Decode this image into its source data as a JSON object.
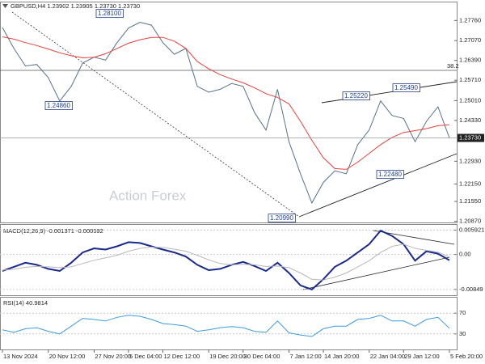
{
  "chart_data": [
    {
      "type": "line",
      "title": "GBPUSD,H4  1.23902 1.23905 1.23730 1.23730",
      "watermark": "Action Forex",
      "categories": [
        "13 Nov 2024",
        null,
        null,
        null,
        "20 Nov 12:00",
        null,
        null,
        null,
        "27 Nov 20:00",
        null,
        null,
        "5 Dec 04:00",
        null,
        null,
        "12 Dec 12:00",
        null,
        null,
        null,
        "19 Dec 20:00",
        null,
        null,
        "30 Dec 04:00",
        null,
        null,
        null,
        "7 Jan 12:00",
        null,
        null,
        "14 Jan 20:00",
        null,
        null,
        null,
        "22 Jan 04:00",
        null,
        null,
        "29 Jan 12:00",
        null,
        null,
        null,
        "5 Feb 20:00"
      ],
      "series": [
        {
          "color": "#56728c",
          "values": [
            1.2752,
            1.268,
            1.262,
            1.2625,
            1.258,
            1.25,
            1.255,
            1.263,
            1.265,
            1.264,
            1.27,
            1.275,
            1.277,
            1.276,
            1.27,
            1.266,
            1.268,
            1.255,
            1.253,
            1.254,
            1.256,
            1.255,
            1.246,
            1.24,
            1.254,
            1.236,
            1.225,
            1.215,
            1.222,
            1.226,
            1.225,
            1.235,
            1.24,
            1.25,
            1.245,
            1.244,
            1.236,
            1.243,
            1.248,
            1.2373
          ]
        },
        {
          "color": "#e8413a",
          "values": [
            1.272,
            1.2712,
            1.27,
            1.269,
            1.2678,
            1.2665,
            1.2655,
            1.2648,
            1.265,
            1.2662,
            1.268,
            1.2698,
            1.271,
            1.2718,
            1.2718,
            1.2705,
            1.268,
            1.2635,
            1.261,
            1.259,
            1.2575,
            1.2562,
            1.2545,
            1.2525,
            1.2512,
            1.249,
            1.243,
            1.2365,
            1.2305,
            1.2268,
            1.2265,
            1.229,
            1.232,
            1.235,
            1.2375,
            1.2392,
            1.2398,
            1.2405,
            1.2415,
            1.2418
          ]
        }
      ],
      "ylim": [
        1.2083,
        1.2838
      ],
      "yticks": [
        {
          "value": 1.2776,
          "label": "1.27760"
        },
        {
          "value": 1.2707,
          "label": "1.27070"
        },
        {
          "value": 1.2639,
          "label": "1.26390"
        },
        {
          "value": 1.2571,
          "label": "1.25710"
        },
        {
          "value": 1.2501,
          "label": "1.25010"
        },
        {
          "value": 1.2433,
          "label": "1.24330"
        },
        {
          "value": 1.2293,
          "label": "1.22930"
        },
        {
          "value": 1.2215,
          "label": "1.22150"
        },
        {
          "value": 1.2155,
          "label": "1.21550"
        },
        {
          "value": 1.2087,
          "label": "1.20870"
        }
      ],
      "current_price": {
        "value": 1.2373,
        "label": "1.23730"
      },
      "annotations": [
        "1.28100",
        "1.24860",
        "1.25220",
        "1.25490",
        "1.22480",
        "1.20990",
        "38.2"
      ]
    },
    {
      "type": "line",
      "title": "MACD(12,26,9) -0.001371 -0.000592",
      "series": [
        {
          "color": "#1a2a8c",
          "values": [
            -0.004,
            -0.003,
            -0.002,
            -0.0025,
            -0.0035,
            -0.004,
            -0.002,
            0.0005,
            0.0015,
            0.0012,
            0.002,
            0.003,
            0.0028,
            0.002,
            0.0012,
            0.0005,
            -0.0005,
            -0.0025,
            -0.0038,
            -0.0035,
            -0.0025,
            -0.0018,
            -0.0028,
            -0.004,
            -0.002,
            -0.0045,
            -0.0075,
            -0.0085,
            -0.006,
            -0.003,
            -0.0015,
            0.0005,
            0.0025,
            0.0058,
            0.0045,
            0.0025,
            -0.0015,
            0.0008,
            0.0002,
            -0.0014
          ]
        },
        {
          "color": "#b8b8b8",
          "values": [
            -0.0038,
            -0.0036,
            -0.0031,
            -0.0029,
            -0.003,
            -0.0032,
            -0.003,
            -0.0022,
            -0.0014,
            -0.0008,
            -0.0002,
            0.0008,
            0.0015,
            0.0018,
            0.0017,
            0.0013,
            0.0008,
            -0.0002,
            -0.0013,
            -0.0022,
            -0.0025,
            -0.0024,
            -0.0025,
            -0.0029,
            -0.0028,
            -0.0032,
            -0.0045,
            -0.006,
            -0.0062,
            -0.0055,
            -0.0045,
            -0.003,
            -0.0015,
            0.0005,
            0.002,
            0.0025,
            0.0015,
            0.001,
            0.0006,
            -0.0006
          ]
        }
      ],
      "ylim": [
        -0.0099,
        0.0072
      ],
      "yticks": [
        0.005921,
        {
          "value": 0,
          "label": "0.00"
        },
        -0.00849
      ]
    },
    {
      "type": "line",
      "title": "RSI(14) 40.9814",
      "series": [
        {
          "color": "#3d9be0",
          "values": [
            38,
            33,
            40,
            42,
            35,
            30,
            45,
            60,
            58,
            55,
            62,
            66,
            64,
            58,
            50,
            48,
            45,
            35,
            38,
            42,
            44,
            42,
            35,
            33,
            55,
            32,
            28,
            25,
            40,
            45,
            45,
            58,
            60,
            66,
            55,
            55,
            45,
            58,
            62,
            41
          ]
        }
      ],
      "ylim": [
        0,
        100
      ],
      "yticks": [
        70,
        30
      ]
    }
  ]
}
